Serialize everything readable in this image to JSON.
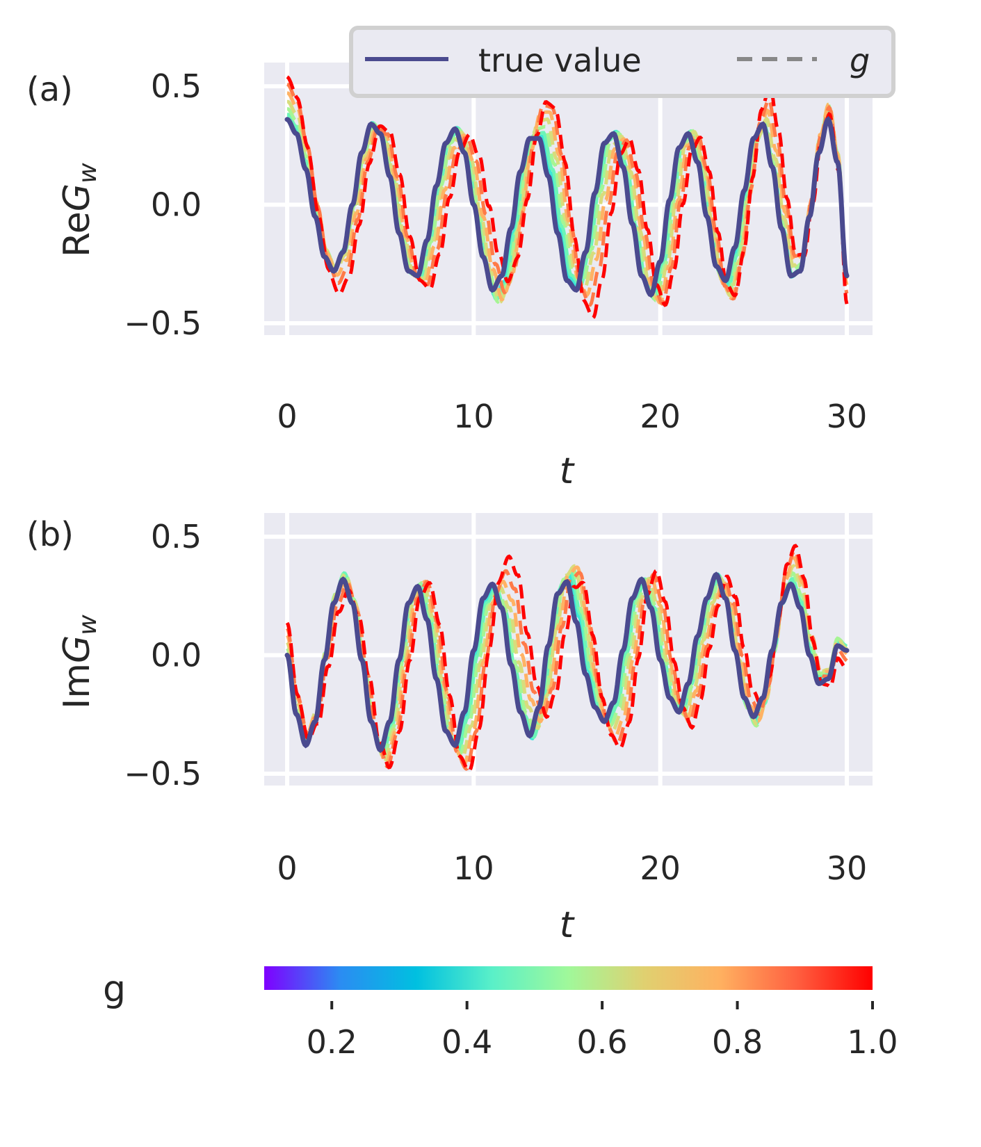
{
  "chart_data": [
    {
      "type": "line",
      "panel_label": "(a)",
      "ylabel_main": "Re",
      "ylabel_sub": "G",
      "ylabel_subscript": "w",
      "xlabel": "t",
      "xlim": [
        0,
        30
      ],
      "ylim": [
        -0.55,
        0.6
      ],
      "xticks": [
        "0",
        "10",
        "20",
        "30"
      ],
      "yticks": [
        "0.5",
        "0.0",
        "−0.5"
      ],
      "grid": true,
      "legend": {
        "placement": "top-right",
        "entries": [
          "true value",
          "g"
        ]
      },
      "series": [
        {
          "name": "true value",
          "style": "solid",
          "color": "#4a4a8f",
          "x": [
            0,
            0.5,
            1,
            1.5,
            2,
            2.5,
            3,
            3.5,
            4,
            4.5,
            5,
            5.5,
            6,
            6.5,
            7,
            7.5,
            8,
            8.5,
            9,
            9.5,
            10,
            10.5,
            11,
            11.5,
            12,
            12.5,
            13,
            13.5,
            14,
            14.5,
            15,
            15.5,
            16,
            16.5,
            17,
            17.5,
            18,
            18.5,
            19,
            19.5,
            20,
            20.5,
            21,
            21.5,
            22,
            22.5,
            23,
            23.5,
            24,
            24.5,
            25,
            25.5,
            26,
            26.5,
            27,
            27.5,
            28,
            28.5,
            29,
            29.5,
            30
          ],
          "y": [
            0.36,
            0.3,
            0.15,
            -0.05,
            -0.22,
            -0.28,
            -0.2,
            0,
            0.22,
            0.34,
            0.3,
            0.12,
            -0.12,
            -0.28,
            -0.3,
            -0.15,
            0.08,
            0.26,
            0.32,
            0.22,
            0,
            -0.22,
            -0.36,
            -0.3,
            -0.1,
            0.14,
            0.28,
            0.28,
            0.12,
            -0.12,
            -0.32,
            -0.36,
            -0.2,
            0.05,
            0.26,
            0.3,
            0.16,
            -0.08,
            -0.3,
            -0.38,
            -0.24,
            0.02,
            0.24,
            0.3,
            0.18,
            -0.05,
            -0.26,
            -0.32,
            -0.18,
            0.06,
            0.28,
            0.34,
            0.16,
            -0.1,
            -0.3,
            -0.28,
            -0.05,
            0.22,
            0.36,
            0.18,
            -0.3
          ]
        }
      ]
    },
    {
      "type": "line",
      "panel_label": "(b)",
      "ylabel_main": "Im",
      "ylabel_sub": "G",
      "ylabel_subscript": "w",
      "xlabel": "t",
      "xlim": [
        0,
        30
      ],
      "ylim": [
        -0.55,
        0.6
      ],
      "xticks": [
        "0",
        "10",
        "20",
        "30"
      ],
      "yticks": [
        "0.5",
        "0.0",
        "−0.5"
      ],
      "grid": true,
      "series": [
        {
          "name": "true value",
          "style": "solid",
          "color": "#4a4a8f",
          "x": [
            0,
            0.5,
            1,
            1.5,
            2,
            2.5,
            3,
            3.5,
            4,
            4.5,
            5,
            5.5,
            6,
            6.5,
            7,
            7.5,
            8,
            8.5,
            9,
            9.5,
            10,
            10.5,
            11,
            11.5,
            12,
            12.5,
            13,
            13.5,
            14,
            14.5,
            15,
            15.5,
            16,
            16.5,
            17,
            17.5,
            18,
            18.5,
            19,
            19.5,
            20,
            20.5,
            21,
            21.5,
            22,
            22.5,
            23,
            23.5,
            24,
            24.5,
            25,
            25.5,
            26,
            26.5,
            27,
            27.5,
            28,
            28.5,
            29,
            29.5,
            30
          ],
          "y": [
            0,
            -0.25,
            -0.38,
            -0.28,
            -0.02,
            0.22,
            0.32,
            0.22,
            -0.02,
            -0.28,
            -0.4,
            -0.28,
            -0.02,
            0.22,
            0.29,
            0.15,
            -0.1,
            -0.32,
            -0.38,
            -0.24,
            0.02,
            0.24,
            0.3,
            0.2,
            -0.04,
            -0.24,
            -0.34,
            -0.22,
            0.04,
            0.26,
            0.31,
            0.14,
            -0.08,
            -0.22,
            -0.28,
            -0.2,
            0.02,
            0.24,
            0.32,
            0.2,
            -0.02,
            -0.18,
            -0.24,
            -0.12,
            0.08,
            0.24,
            0.34,
            0.24,
            0.02,
            -0.18,
            -0.26,
            -0.18,
            0.02,
            0.22,
            0.3,
            0.2,
            0,
            -0.12,
            -0.1,
            0.04,
            0.02
          ]
        }
      ]
    }
  ],
  "colorbar": {
    "label": "g",
    "range": [
      0.1,
      1.0
    ],
    "ticks": [
      "0.2",
      "0.4",
      "0.6",
      "0.8",
      "1.0"
    ],
    "tick_values": [
      0.2,
      0.4,
      0.6,
      0.8,
      1.0
    ],
    "colors": [
      "#7f00ff",
      "#2b8cf2",
      "#00c0e0",
      "#5af0c8",
      "#a0f89a",
      "#e0d070",
      "#ffb060",
      "#ff6040",
      "#ff0000"
    ]
  },
  "g_curves": {
    "g_values": [
      0.4,
      0.5,
      0.6,
      0.7,
      0.8,
      0.9,
      1.0
    ],
    "colors": [
      "#3ce6d8",
      "#6cf5b8",
      "#a6f594",
      "#d8dc7c",
      "#ffb264",
      "#ff7a48",
      "#ff0000"
    ]
  }
}
